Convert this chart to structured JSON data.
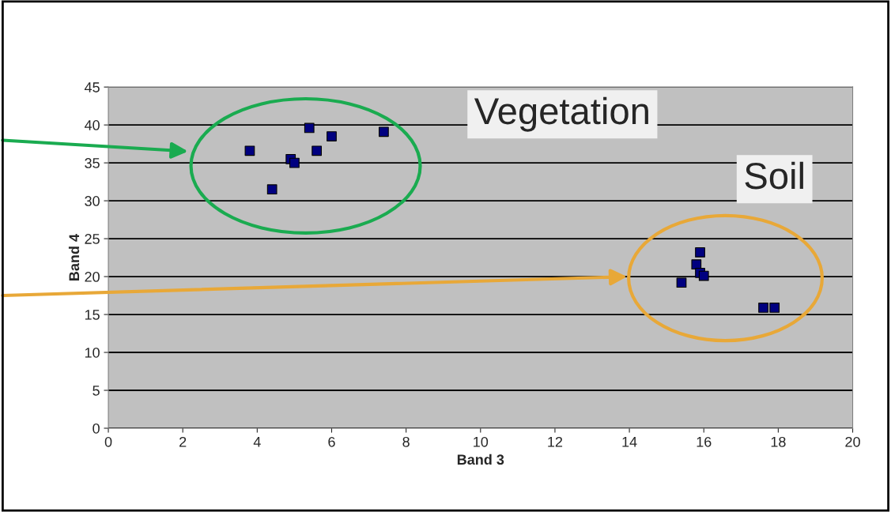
{
  "chart_data": {
    "type": "scatter",
    "xlabel": "Band 3",
    "ylabel": "Band 4",
    "x": [
      3.8,
      4.4,
      4.9,
      5.0,
      5.4,
      5.6,
      6.0,
      7.4,
      15.4,
      15.8,
      15.9,
      15.9,
      16.0,
      17.6,
      17.9
    ],
    "series": [
      {
        "color": "#000080",
        "values": [
          36.6,
          31.5,
          35.5,
          35.0,
          39.6,
          36.6,
          38.5,
          39.1,
          19.2,
          21.6,
          23.2,
          20.5,
          20.1,
          15.9,
          15.9
        ]
      }
    ],
    "annotations": [
      "Vegetation",
      "Soil"
    ],
    "xlim": [
      0,
      20
    ],
    "xticks": [
      0,
      2,
      4,
      6,
      8,
      10,
      12,
      14,
      16,
      18,
      20
    ],
    "ylim": [
      0,
      45
    ],
    "yticks": [
      0,
      5,
      10,
      15,
      20,
      25,
      30,
      35,
      40,
      45
    ],
    "grid": "y",
    "marker": "square",
    "legend": false
  }
}
